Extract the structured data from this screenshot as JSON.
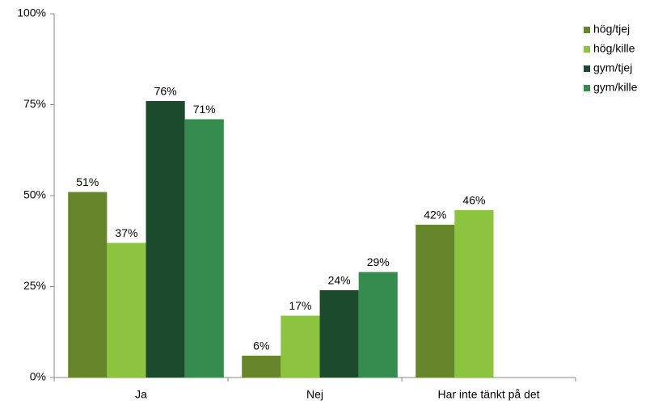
{
  "chart_data": {
    "type": "bar",
    "categories": [
      "Ja",
      "Nej",
      "Har inte tänkt på det"
    ],
    "series": [
      {
        "name": "hög/tjej",
        "color": "#67862b",
        "values": [
          51,
          6,
          42
        ],
        "value_labels": [
          "51%",
          "6%",
          "42%"
        ]
      },
      {
        "name": "hög/kille",
        "color": "#8cc43f",
        "values": [
          37,
          17,
          46
        ],
        "value_labels": [
          "37%",
          "17%",
          "46%"
        ]
      },
      {
        "name": "gym/tjej",
        "color": "#1c4a2d",
        "values": [
          76,
          24,
          null
        ],
        "value_labels": [
          "76%",
          "24%",
          null
        ]
      },
      {
        "name": "gym/kille",
        "color": "#368b4e",
        "values": [
          71,
          29,
          null
        ],
        "value_labels": [
          "71%",
          "29%",
          null
        ]
      }
    ],
    "ylim": [
      0,
      100
    ],
    "yticks": [
      {
        "value": 0,
        "label": "0%"
      },
      {
        "value": 25,
        "label": "25%"
      },
      {
        "value": 50,
        "label": "50%"
      },
      {
        "value": 75,
        "label": "75%"
      },
      {
        "value": 100,
        "label": "100%"
      }
    ],
    "grid": false,
    "legend": "right"
  }
}
